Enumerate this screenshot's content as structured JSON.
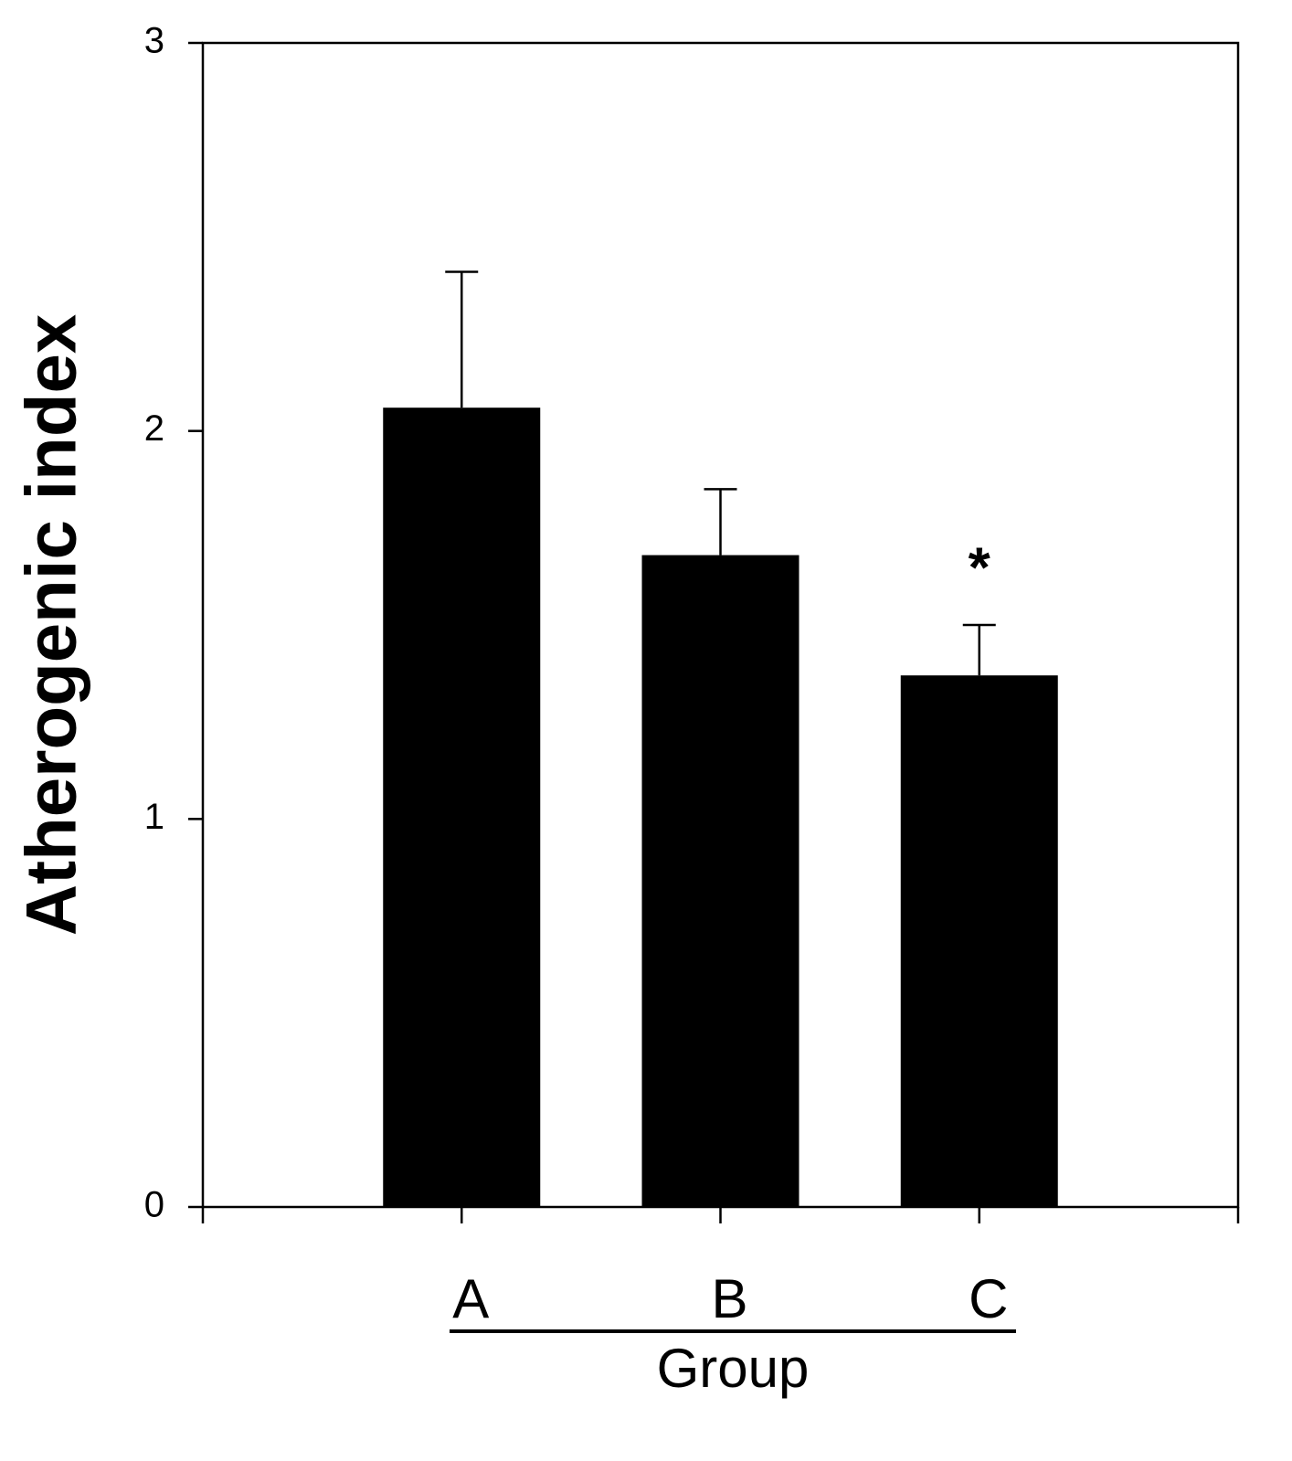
{
  "chart_data": {
    "type": "bar",
    "y_label": "Atherogenic index",
    "x_label": "Group",
    "categories": [
      "A",
      "B",
      "C"
    ],
    "values": [
      2.06,
      1.68,
      1.37
    ],
    "errors": [
      0.35,
      0.17,
      0.13
    ],
    "color": "#000000",
    "ylim": [
      0,
      3
    ],
    "yticks": [
      0,
      1,
      2,
      3
    ],
    "annotations": [
      {
        "text": "*",
        "category": "C"
      }
    ]
  }
}
